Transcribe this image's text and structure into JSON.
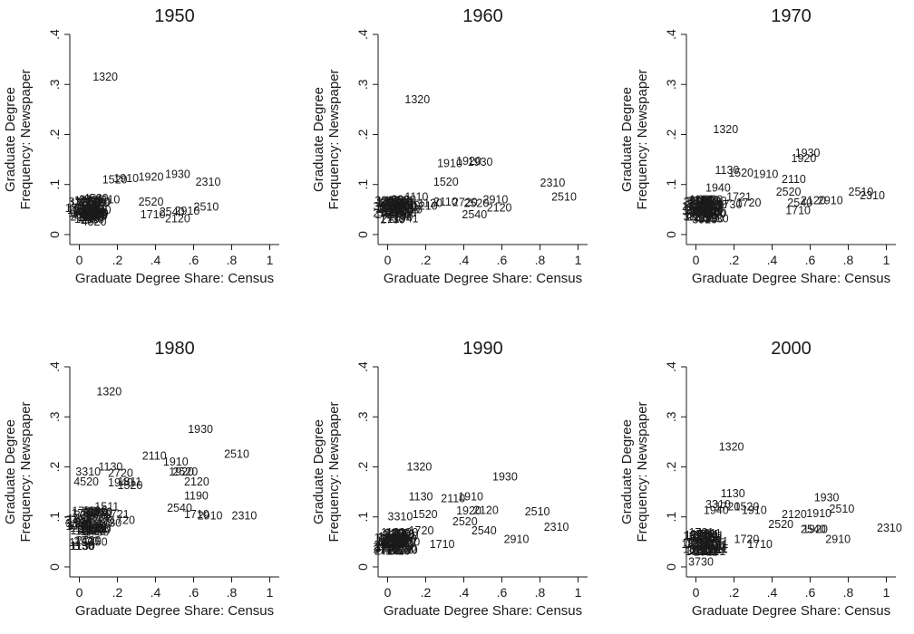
{
  "chart_data": [
    {
      "type": "scatter",
      "title": "1950",
      "xlabel": "Graduate Degree Share: Census",
      "ylabel_lines": [
        "Graduate Degree",
        "Frequency: Newspaper"
      ],
      "xlim": [
        -0.05,
        1.05
      ],
      "ylim": [
        -0.02,
        0.4
      ],
      "xticks": [
        0,
        0.2,
        0.4,
        0.6,
        0.8,
        1
      ],
      "xtick_labels": [
        "0",
        ".2",
        ".4",
        ".6",
        ".8",
        "1"
      ],
      "yticks": [
        0,
        0.1,
        0.2,
        0.3,
        0.4
      ],
      "ytick_labels": [
        "0",
        ".1",
        ".2",
        ".3",
        ".4"
      ],
      "labeled_points": [
        {
          "label": "1320",
          "x": 0.07,
          "y": 0.315
        },
        {
          "label": "1930",
          "x": 0.45,
          "y": 0.12
        },
        {
          "label": "1920",
          "x": 0.31,
          "y": 0.115
        },
        {
          "label": "1910",
          "x": 0.18,
          "y": 0.112
        },
        {
          "label": "1520",
          "x": 0.12,
          "y": 0.109
        },
        {
          "label": "2310",
          "x": 0.61,
          "y": 0.105
        },
        {
          "label": "4520",
          "x": 0.02,
          "y": 0.072
        },
        {
          "label": "1110",
          "x": 0.09,
          "y": 0.07
        },
        {
          "label": "2520",
          "x": 0.31,
          "y": 0.065
        },
        {
          "label": "2510",
          "x": 0.6,
          "y": 0.055
        },
        {
          "label": "2910",
          "x": 0.5,
          "y": 0.047
        },
        {
          "label": "2540",
          "x": 0.42,
          "y": 0.045
        },
        {
          "label": "1710",
          "x": 0.32,
          "y": 0.04
        },
        {
          "label": "2120",
          "x": 0.45,
          "y": 0.032
        },
        {
          "label": "4320",
          "x": 0.01,
          "y": 0.025
        }
      ],
      "cluster_labels": [
        "1750",
        "2720",
        "1190",
        "3330",
        "1720",
        "1730",
        "2110",
        "1130"
      ]
    },
    {
      "type": "scatter",
      "title": "1960",
      "xlabel": "Graduate Degree Share: Census",
      "ylabel_lines": [
        "Graduate Degree",
        "Frequency: Newspaper"
      ],
      "xlim": [
        -0.05,
        1.05
      ],
      "ylim": [
        -0.02,
        0.4
      ],
      "xticks": [
        0,
        0.2,
        0.4,
        0.6,
        0.8,
        1
      ],
      "xtick_labels": [
        "0",
        ".2",
        ".4",
        ".6",
        ".8",
        "1"
      ],
      "yticks": [
        0,
        0.1,
        0.2,
        0.3,
        0.4
      ],
      "ytick_labels": [
        "0",
        ".1",
        ".2",
        ".3",
        ".4"
      ],
      "labeled_points": [
        {
          "label": "1320",
          "x": 0.09,
          "y": 0.27
        },
        {
          "label": "1910",
          "x": 0.26,
          "y": 0.142
        },
        {
          "label": "1920",
          "x": 0.36,
          "y": 0.147
        },
        {
          "label": "1930",
          "x": 0.42,
          "y": 0.145
        },
        {
          "label": "1520",
          "x": 0.24,
          "y": 0.105
        },
        {
          "label": "2310",
          "x": 0.8,
          "y": 0.103
        },
        {
          "label": "2510",
          "x": 0.86,
          "y": 0.075
        },
        {
          "label": "2910",
          "x": 0.5,
          "y": 0.07
        },
        {
          "label": "2110",
          "x": 0.24,
          "y": 0.065
        },
        {
          "label": "2720",
          "x": 0.34,
          "y": 0.064
        },
        {
          "label": "2520",
          "x": 0.4,
          "y": 0.062
        },
        {
          "label": "2120",
          "x": 0.52,
          "y": 0.053
        },
        {
          "label": "2540",
          "x": 0.39,
          "y": 0.04
        },
        {
          "label": "1110",
          "x": 0.09,
          "y": 0.075
        },
        {
          "label": "1120",
          "x": 0.16,
          "y": 0.062
        },
        {
          "label": "1210",
          "x": 0.13,
          "y": 0.057
        },
        {
          "label": "1710",
          "x": 0.05,
          "y": 0.05
        },
        {
          "label": "1941",
          "x": 0.03,
          "y": 0.032
        }
      ],
      "cluster_labels": []
    },
    {
      "type": "scatter",
      "title": "1970",
      "xlabel": "Graduate Degree Share: Census",
      "ylabel_lines": [
        "Graduate Degree",
        "Frequency: Newspaper"
      ],
      "xlim": [
        -0.05,
        1.05
      ],
      "ylim": [
        -0.02,
        0.4
      ],
      "xticks": [
        0,
        0.2,
        0.4,
        0.6,
        0.8,
        1
      ],
      "xtick_labels": [
        "0",
        ".2",
        ".4",
        ".6",
        ".8",
        "1"
      ],
      "yticks": [
        0,
        0.1,
        0.2,
        0.3,
        0.4
      ],
      "ytick_labels": [
        "0",
        ".1",
        ".2",
        ".3",
        ".4"
      ],
      "labeled_points": [
        {
          "label": "1320",
          "x": 0.09,
          "y": 0.21
        },
        {
          "label": "1930",
          "x": 0.52,
          "y": 0.163
        },
        {
          "label": "1920",
          "x": 0.5,
          "y": 0.152
        },
        {
          "label": "1130",
          "x": 0.1,
          "y": 0.128
        },
        {
          "label": "1520",
          "x": 0.17,
          "y": 0.123
        },
        {
          "label": "1910",
          "x": 0.3,
          "y": 0.12
        },
        {
          "label": "2110",
          "x": 0.45,
          "y": 0.11
        },
        {
          "label": "1940",
          "x": 0.05,
          "y": 0.093
        },
        {
          "label": "2520",
          "x": 0.42,
          "y": 0.085
        },
        {
          "label": "2510",
          "x": 0.8,
          "y": 0.085
        },
        {
          "label": "2310",
          "x": 0.86,
          "y": 0.078
        },
        {
          "label": "1721",
          "x": 0.16,
          "y": 0.075
        },
        {
          "label": "1720",
          "x": 0.21,
          "y": 0.063
        },
        {
          "label": "1730",
          "x": 0.11,
          "y": 0.06
        },
        {
          "label": "2540",
          "x": 0.48,
          "y": 0.063
        },
        {
          "label": "2120",
          "x": 0.55,
          "y": 0.068
        },
        {
          "label": "2910",
          "x": 0.64,
          "y": 0.068
        },
        {
          "label": "1710",
          "x": 0.47,
          "y": 0.048
        },
        {
          "label": "3920",
          "x": -0.02,
          "y": 0.03
        }
      ],
      "cluster_labels": [
        "3330",
        "1190"
      ]
    },
    {
      "type": "scatter",
      "title": "1980",
      "xlabel": "Graduate Degree Share: Census",
      "ylabel_lines": [
        "Graduate Degree",
        "Frequency: Newspaper"
      ],
      "xlim": [
        -0.05,
        1.05
      ],
      "ylim": [
        -0.02,
        0.4
      ],
      "xticks": [
        0,
        0.2,
        0.4,
        0.6,
        0.8,
        1
      ],
      "xtick_labels": [
        "0",
        ".2",
        ".4",
        ".6",
        ".8",
        "1"
      ],
      "yticks": [
        0,
        0.1,
        0.2,
        0.3,
        0.4
      ],
      "ytick_labels": [
        "0",
        ".1",
        ".2",
        ".3",
        ".4"
      ],
      "labeled_points": [
        {
          "label": "1320",
          "x": 0.09,
          "y": 0.35
        },
        {
          "label": "1930",
          "x": 0.57,
          "y": 0.275
        },
        {
          "label": "2510",
          "x": 0.76,
          "y": 0.225
        },
        {
          "label": "2110",
          "x": 0.33,
          "y": 0.222
        },
        {
          "label": "1910",
          "x": 0.44,
          "y": 0.21
        },
        {
          "label": "1920",
          "x": 0.47,
          "y": 0.19
        },
        {
          "label": "2520",
          "x": 0.49,
          "y": 0.19
        },
        {
          "label": "2120",
          "x": 0.55,
          "y": 0.17
        },
        {
          "label": "1130",
          "x": 0.1,
          "y": 0.2
        },
        {
          "label": "3310",
          "x": -0.02,
          "y": 0.19
        },
        {
          "label": "2720",
          "x": 0.15,
          "y": 0.187
        },
        {
          "label": "1940",
          "x": 0.15,
          "y": 0.168
        },
        {
          "label": "1811",
          "x": 0.2,
          "y": 0.17
        },
        {
          "label": "4520",
          "x": -0.03,
          "y": 0.17
        },
        {
          "label": "1520",
          "x": 0.2,
          "y": 0.163
        },
        {
          "label": "1190",
          "x": 0.55,
          "y": 0.142
        },
        {
          "label": "2540",
          "x": 0.46,
          "y": 0.118
        },
        {
          "label": "1710",
          "x": 0.55,
          "y": 0.105
        },
        {
          "label": "2910",
          "x": 0.62,
          "y": 0.102
        },
        {
          "label": "2310",
          "x": 0.8,
          "y": 0.102
        },
        {
          "label": "1511",
          "x": 0.08,
          "y": 0.12
        },
        {
          "label": "1721",
          "x": 0.13,
          "y": 0.105
        },
        {
          "label": "1730",
          "x": 0.09,
          "y": 0.088
        },
        {
          "label": "1720",
          "x": 0.16,
          "y": 0.093
        },
        {
          "label": "1220",
          "x": 0.03,
          "y": 0.1
        },
        {
          "label": "2041",
          "x": 0.02,
          "y": 0.075
        }
      ],
      "cluster_labels": []
    },
    {
      "type": "scatter",
      "title": "1990",
      "xlabel": "Graduate Degree Share: Census",
      "ylabel_lines": [
        "Graduate Degree",
        "Frequency: Newspaper"
      ],
      "xlim": [
        -0.05,
        1.05
      ],
      "ylim": [
        -0.02,
        0.4
      ],
      "xticks": [
        0,
        0.2,
        0.4,
        0.6,
        0.8,
        1
      ],
      "xtick_labels": [
        "0",
        ".2",
        ".4",
        ".6",
        ".8",
        "1"
      ],
      "yticks": [
        0,
        0.1,
        0.2,
        0.3,
        0.4
      ],
      "ytick_labels": [
        "0",
        ".1",
        ".2",
        ".3",
        ".4"
      ],
      "labeled_points": [
        {
          "label": "1320",
          "x": 0.1,
          "y": 0.2
        },
        {
          "label": "1930",
          "x": 0.55,
          "y": 0.18
        },
        {
          "label": "1130",
          "x": 0.11,
          "y": 0.14
        },
        {
          "label": "2110",
          "x": 0.28,
          "y": 0.137
        },
        {
          "label": "1910",
          "x": 0.37,
          "y": 0.14
        },
        {
          "label": "1920",
          "x": 0.36,
          "y": 0.112
        },
        {
          "label": "2120",
          "x": 0.45,
          "y": 0.113
        },
        {
          "label": "2510",
          "x": 0.72,
          "y": 0.11
        },
        {
          "label": "2520",
          "x": 0.34,
          "y": 0.09
        },
        {
          "label": "2540",
          "x": 0.44,
          "y": 0.072
        },
        {
          "label": "2310",
          "x": 0.82,
          "y": 0.08
        },
        {
          "label": "2910",
          "x": 0.61,
          "y": 0.055
        },
        {
          "label": "1710",
          "x": 0.22,
          "y": 0.045
        },
        {
          "label": "1720",
          "x": 0.11,
          "y": 0.072
        },
        {
          "label": "1520",
          "x": 0.13,
          "y": 0.105
        },
        {
          "label": "3310",
          "x": 0.0,
          "y": 0.1
        }
      ],
      "cluster_labels": []
    },
    {
      "type": "scatter",
      "title": "2000",
      "xlabel": "Graduate Degree Share: Census",
      "ylabel_lines": [
        "Graduate Degree",
        "Frequency: Newspaper"
      ],
      "xlim": [
        -0.05,
        1.05
      ],
      "ylim": [
        -0.02,
        0.4
      ],
      "xticks": [
        0,
        0.2,
        0.4,
        0.6,
        0.8,
        1
      ],
      "xtick_labels": [
        "0",
        ".2",
        ".4",
        ".6",
        ".8",
        "1"
      ],
      "yticks": [
        0,
        0.1,
        0.2,
        0.3,
        0.4
      ],
      "ytick_labels": [
        "0",
        ".1",
        ".2",
        ".3",
        ".4"
      ],
      "labeled_points": [
        {
          "label": "1320",
          "x": 0.12,
          "y": 0.24
        },
        {
          "label": "1130",
          "x": 0.13,
          "y": 0.147
        },
        {
          "label": "1930",
          "x": 0.62,
          "y": 0.138
        },
        {
          "label": "3310",
          "x": 0.05,
          "y": 0.125
        },
        {
          "label": "1720",
          "x": 0.1,
          "y": 0.12
        },
        {
          "label": "1520",
          "x": 0.2,
          "y": 0.12
        },
        {
          "label": "1940",
          "x": 0.04,
          "y": 0.113
        },
        {
          "label": "1910",
          "x": 0.24,
          "y": 0.113
        },
        {
          "label": "2510",
          "x": 0.7,
          "y": 0.116
        },
        {
          "label": "1910",
          "x": 0.58,
          "y": 0.107
        },
        {
          "label": "2120",
          "x": 0.45,
          "y": 0.105
        },
        {
          "label": "2520",
          "x": 0.38,
          "y": 0.085
        },
        {
          "label": "1920",
          "x": 0.56,
          "y": 0.075
        },
        {
          "label": "2540",
          "x": 0.55,
          "y": 0.075
        },
        {
          "label": "2310",
          "x": 0.95,
          "y": 0.078
        },
        {
          "label": "2910",
          "x": 0.68,
          "y": 0.055
        },
        {
          "label": "1710",
          "x": 0.27,
          "y": 0.045
        },
        {
          "label": "1720",
          "x": 0.2,
          "y": 0.055
        },
        {
          "label": "3730",
          "x": -0.04,
          "y": 0.01
        }
      ],
      "cluster_labels": [
        "1811",
        "1721"
      ]
    }
  ]
}
